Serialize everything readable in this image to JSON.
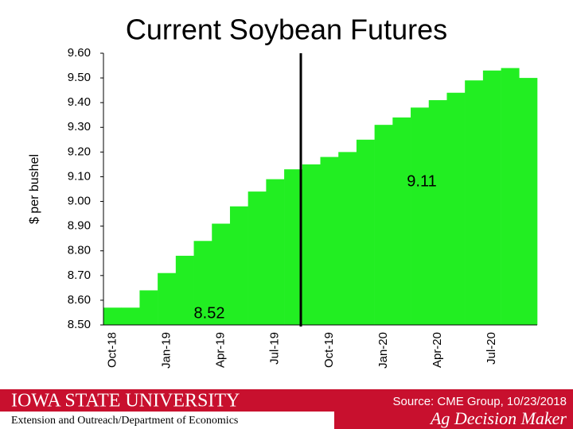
{
  "chart_data": {
    "type": "step-area",
    "title": "Current Soybean Futures",
    "y_label": "$ per bushel",
    "categories": [
      "Oct-18",
      null,
      null,
      "Jan-19",
      null,
      null,
      "Apr-19",
      null,
      null,
      "Jul-19",
      null,
      null,
      "Oct-19",
      null,
      null,
      "Jan-20",
      null,
      null,
      "Apr-20",
      null,
      null,
      "Jul-20",
      null,
      null
    ],
    "values": [
      8.57,
      8.57,
      8.64,
      8.71,
      8.78,
      8.84,
      8.91,
      8.98,
      9.04,
      9.09,
      9.13,
      9.15,
      9.18,
      9.2,
      9.25,
      9.31,
      9.34,
      9.38,
      9.41,
      9.44,
      9.49,
      9.53,
      9.54,
      9.5
    ],
    "color": "#22ee22",
    "ylim": [
      8.5,
      9.6
    ],
    "yticks": [
      {
        "value": 8.5,
        "label": "8.50"
      },
      {
        "value": 8.6,
        "label": "8.60"
      },
      {
        "value": 8.7,
        "label": "8.70"
      },
      {
        "value": 8.8,
        "label": "8.80"
      },
      {
        "value": 8.9,
        "label": "8.90"
      },
      {
        "value": 9.0,
        "label": "9.00"
      },
      {
        "value": 9.1,
        "label": "9.10"
      },
      {
        "value": 9.2,
        "label": "9.20"
      },
      {
        "value": 9.3,
        "label": "9.30"
      },
      {
        "value": 9.4,
        "label": "9.40"
      },
      {
        "value": 9.5,
        "label": "9.50"
      },
      {
        "value": 9.6,
        "label": "9.60"
      }
    ],
    "grid": false,
    "annotations": [
      "9.11",
      "8.52"
    ]
  },
  "footer": {
    "university": "IOWA STATE UNIVERSITY",
    "department": "Extension and Outreach/Department of Economics",
    "source": "Source: CME Group, 10/23/2018",
    "brand": "Ag Decision Maker"
  }
}
